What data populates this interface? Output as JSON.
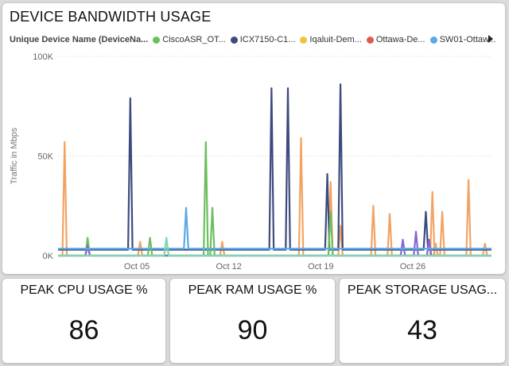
{
  "bandwidth": {
    "title": "DEVICE BANDWIDTH USAGE",
    "legend_title": "Unique Device Name (DeviceNa...",
    "legend_items": [
      {
        "label": "CiscoASR_OT...",
        "color": "#6cbf5c"
      },
      {
        "label": "ICX7150-C1...",
        "color": "#3d4a7e"
      },
      {
        "label": "Iqaluit-Dem...",
        "color": "#f0c43c"
      },
      {
        "label": "Ottawa-De...",
        "color": "#e05a4c"
      },
      {
        "label": "SW01-Ottaw...",
        "color": "#5aaae6"
      }
    ],
    "legend_next_icon": "caret-right-icon"
  },
  "chart_data": {
    "type": "line",
    "ylabel": "Traffic in Mbps",
    "ylim": [
      0,
      100000
    ],
    "yticks": [
      0,
      50000,
      100000
    ],
    "ytick_labels": [
      "0K",
      "50K",
      "100K"
    ],
    "x_range": [
      "2023-09-29",
      "2023-11-01"
    ],
    "xtick_labels": [
      "Oct 05",
      "Oct 12",
      "Oct 19",
      "Oct 26"
    ],
    "xtick_dates": [
      "2023-10-05",
      "2023-10-12",
      "2023-10-19",
      "2023-10-26"
    ],
    "grid": "horizontal",
    "series": [
      {
        "color": "#f4a261",
        "baseline": 0,
        "spikes": [
          [
            "2023-09-29T12:00",
            57000
          ],
          [
            "2023-10-05T06:00",
            7000
          ],
          [
            "2023-10-11T12:00",
            7000
          ],
          [
            "2023-10-17T12:00",
            59000
          ],
          [
            "2023-10-19T18:00",
            37000
          ],
          [
            "2023-10-20T12:00",
            15000
          ],
          [
            "2023-10-23T00:00",
            25000
          ],
          [
            "2023-10-24T06:00",
            21000
          ],
          [
            "2023-10-27T12:00",
            32000
          ],
          [
            "2023-10-28T06:00",
            22000
          ],
          [
            "2023-10-27T18:00",
            6000
          ],
          [
            "2023-10-30T06:00",
            38000
          ],
          [
            "2023-10-31T12:00",
            6000
          ]
        ]
      },
      {
        "color": "#3d4a7e",
        "baseline": 3000,
        "spikes": [
          [
            "2023-10-04T12:00",
            79000
          ],
          [
            "2023-10-15T06:00",
            84000
          ],
          [
            "2023-10-16T12:00",
            84000
          ],
          [
            "2023-10-19T12:00",
            41000
          ],
          [
            "2023-10-20T12:00",
            86000
          ],
          [
            "2023-10-27T00:00",
            22000
          ]
        ]
      },
      {
        "color": "#6cbf5c",
        "baseline": 0,
        "spikes": [
          [
            "2023-10-01T06:00",
            9000
          ],
          [
            "2023-10-06T00:00",
            9000
          ],
          [
            "2023-10-10T06:00",
            57000
          ],
          [
            "2023-10-10T18:00",
            24000
          ],
          [
            "2023-10-19T18:00",
            22000
          ]
        ]
      },
      {
        "color": "#8a63d2",
        "baseline": 0,
        "spikes": [
          [
            "2023-10-01T06:00",
            5000
          ],
          [
            "2023-10-25T06:00",
            8000
          ],
          [
            "2023-10-26T06:00",
            12000
          ],
          [
            "2023-10-27T06:00",
            8000
          ]
        ]
      },
      {
        "color": "#5aaae6",
        "baseline": 3500,
        "spikes": [
          [
            "2023-10-08T18:00",
            24000
          ]
        ]
      },
      {
        "color": "#7fd6b0",
        "baseline": 0,
        "spikes": [
          [
            "2023-10-07T06:00",
            9000
          ]
        ]
      }
    ]
  },
  "kpis": {
    "cpu": {
      "title": "PEAK CPU USAGE %",
      "value": "86"
    },
    "ram": {
      "title": "PEAK RAM USAGE %",
      "value": "90"
    },
    "storage": {
      "title": "PEAK STORAGE USAG...",
      "value": "43"
    }
  }
}
